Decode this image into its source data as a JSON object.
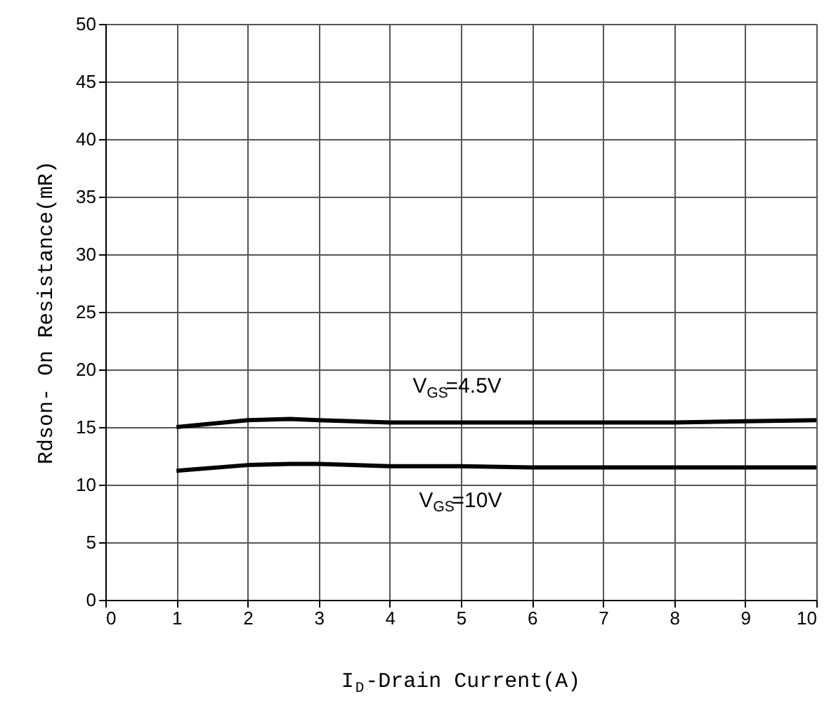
{
  "chart_data": {
    "type": "line",
    "xlabel": "I$_{D}$-Drain Current(A)",
    "ylabel": "Rdson- On Resistance(mR)",
    "xlim": [
      0,
      10
    ],
    "xticks": [
      0,
      1,
      2,
      3,
      4,
      5,
      6,
      7,
      8,
      9,
      10
    ],
    "ylim": [
      0,
      50
    ],
    "yticks": [
      0,
      5,
      10,
      15,
      20,
      25,
      30,
      35,
      40,
      45,
      50
    ],
    "grid": true,
    "marker": "none",
    "line_style": "solid",
    "series": [
      {
        "name": "V$_{GS}$=4.5V",
        "color": "#000000",
        "x": [
          1,
          2,
          2.6,
          3,
          4,
          5,
          6,
          7,
          8,
          9,
          10
        ],
        "values": [
          15,
          15.6,
          15.7,
          15.6,
          15.4,
          15.4,
          15.4,
          15.4,
          15.4,
          15.5,
          15.6
        ]
      },
      {
        "name": "V$_{GS}$=10V",
        "color": "#000000",
        "x": [
          1,
          2,
          2.6,
          3,
          4,
          5,
          6,
          7,
          8,
          9,
          10
        ],
        "values": [
          11.2,
          11.7,
          11.8,
          11.8,
          11.6,
          11.6,
          11.5,
          11.5,
          11.5,
          11.5,
          11.5
        ]
      }
    ]
  }
}
